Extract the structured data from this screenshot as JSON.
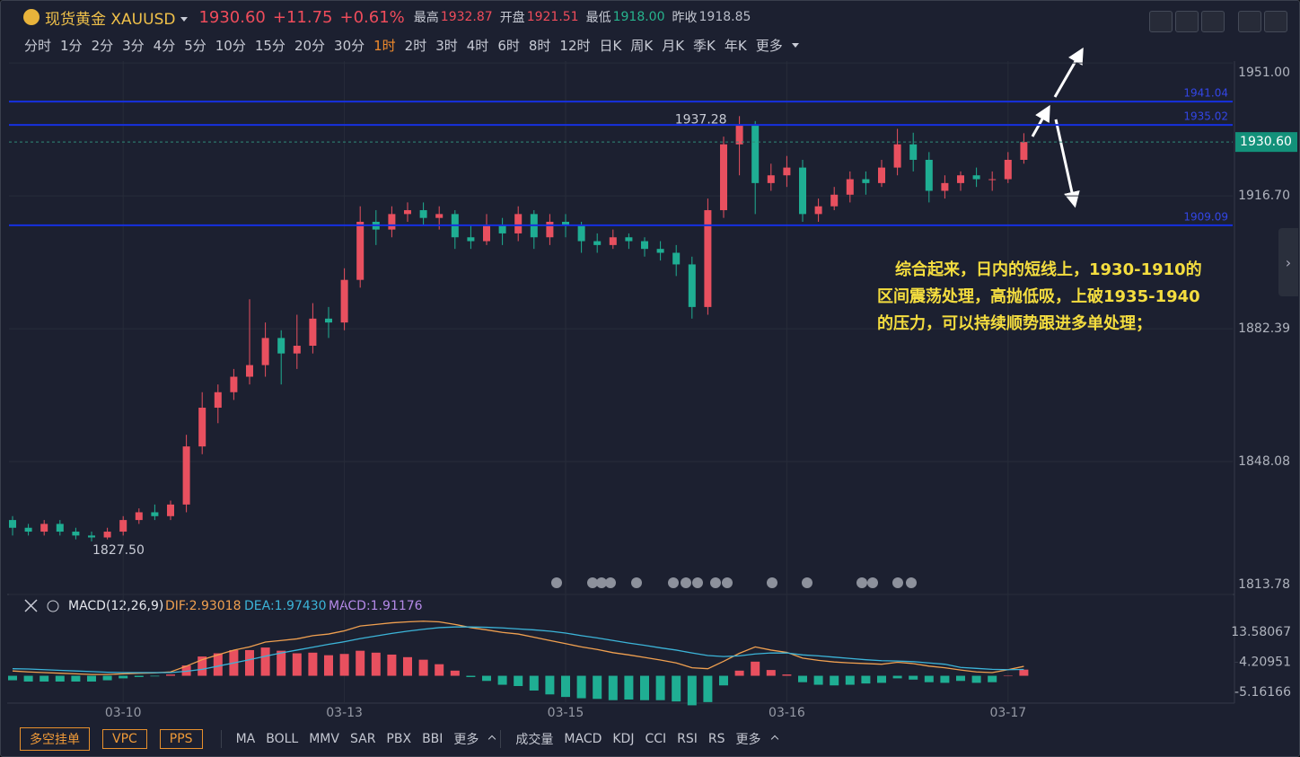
{
  "quote": {
    "name": "现货黄金 XAUUSD",
    "last": "1930.60",
    "change": "+11.75",
    "change_pct": "+0.61%",
    "stats": [
      {
        "label": "最高",
        "value": "1932.87"
      },
      {
        "label": "开盘",
        "value": "1921.51"
      },
      {
        "label": "最低",
        "value": "1918.00"
      },
      {
        "label": "昨收",
        "value": "1918.85"
      }
    ]
  },
  "timeframes": {
    "items": [
      "分时",
      "1分",
      "2分",
      "3分",
      "4分",
      "5分",
      "10分",
      "15分",
      "20分",
      "30分",
      "1时",
      "2时",
      "3时",
      "4时",
      "6时",
      "8时",
      "12时",
      "日K",
      "周K",
      "月K",
      "季K",
      "年K"
    ],
    "active": 10,
    "more": "更多"
  },
  "chart_data": {
    "type": "candlestick",
    "ylim": [
      1813.78,
      1951.5
    ],
    "yticks": [
      {
        "value": 1951,
        "label": "1951.00"
      },
      {
        "value": 1916.7,
        "label": "1916.70"
      },
      {
        "value": 1882.39,
        "label": "1882.39"
      },
      {
        "value": 1848.08,
        "label": "1848.08"
      },
      {
        "value": 1813.78,
        "label": "1813.78"
      }
    ],
    "candles": [
      [
        1833,
        1834,
        1829,
        1831
      ],
      [
        1831,
        1832,
        1829,
        1830
      ],
      [
        1830,
        1833,
        1829,
        1832
      ],
      [
        1832,
        1833,
        1829,
        1830
      ],
      [
        1830,
        1831,
        1828,
        1829
      ],
      [
        1829,
        1830,
        1827.5,
        1828.5
      ],
      [
        1828.5,
        1831,
        1828,
        1830
      ],
      [
        1830,
        1834,
        1829,
        1833
      ],
      [
        1833,
        1836,
        1832,
        1835
      ],
      [
        1835,
        1837,
        1833,
        1834
      ],
      [
        1834,
        1838,
        1833,
        1837
      ],
      [
        1837,
        1855,
        1835,
        1852
      ],
      [
        1852,
        1866,
        1850,
        1862
      ],
      [
        1862,
        1868,
        1858,
        1866
      ],
      [
        1866,
        1872,
        1864,
        1870
      ],
      [
        1870,
        1890,
        1868,
        1873
      ],
      [
        1873,
        1884,
        1870,
        1880
      ],
      [
        1880,
        1882,
        1868,
        1876
      ],
      [
        1876,
        1886,
        1872,
        1878
      ],
      [
        1878,
        1889,
        1876,
        1885
      ],
      [
        1885,
        1888,
        1880,
        1884
      ],
      [
        1884,
        1898,
        1882,
        1895
      ],
      [
        1895,
        1914,
        1893,
        1910
      ],
      [
        1910,
        1913,
        1904,
        1908
      ],
      [
        1908,
        1914,
        1906,
        1912
      ],
      [
        1912,
        1915,
        1910,
        1913
      ],
      [
        1913,
        1915,
        1909,
        1911
      ],
      [
        1911,
        1914,
        1908,
        1912
      ],
      [
        1912,
        1913,
        1903,
        1906
      ],
      [
        1906,
        1909,
        1903,
        1905
      ],
      [
        1905,
        1912,
        1904,
        1909
      ],
      [
        1909,
        1911,
        1904,
        1907
      ],
      [
        1907,
        1914,
        1905,
        1912
      ],
      [
        1912,
        1913,
        1903,
        1906
      ],
      [
        1906,
        1912,
        1904,
        1910
      ],
      [
        1910,
        1912,
        1906,
        1909
      ],
      [
        1909,
        1910,
        1902,
        1905
      ],
      [
        1905,
        1907,
        1902,
        1904
      ],
      [
        1904,
        1908,
        1903,
        1906
      ],
      [
        1906,
        1907,
        1903,
        1905
      ],
      [
        1905,
        1906,
        1901,
        1903
      ],
      [
        1903,
        1905,
        1900,
        1902
      ],
      [
        1902,
        1904,
        1896,
        1899
      ],
      [
        1899,
        1901,
        1885,
        1888
      ],
      [
        1888,
        1916,
        1886,
        1913
      ],
      [
        1913,
        1932,
        1911,
        1930
      ],
      [
        1930,
        1937.28,
        1922,
        1935
      ],
      [
        1935,
        1936,
        1912,
        1920
      ],
      [
        1920,
        1925,
        1918,
        1922
      ],
      [
        1922,
        1927,
        1919,
        1924
      ],
      [
        1924,
        1926,
        1910,
        1912
      ],
      [
        1912,
        1916,
        1910,
        1914
      ],
      [
        1914,
        1919,
        1913,
        1917
      ],
      [
        1917,
        1923,
        1915,
        1921
      ],
      [
        1921,
        1923,
        1917,
        1920
      ],
      [
        1920,
        1926,
        1919,
        1924
      ],
      [
        1924,
        1934,
        1922,
        1930
      ],
      [
        1930,
        1933,
        1923,
        1926
      ],
      [
        1926,
        1928,
        1915,
        1918
      ],
      [
        1918,
        1922,
        1916,
        1920
      ],
      [
        1920,
        1923,
        1918,
        1922
      ],
      [
        1922,
        1924,
        1919,
        1921
      ],
      [
        1921,
        1923,
        1918,
        1921
      ],
      [
        1921,
        1928,
        1920,
        1926
      ],
      [
        1926,
        1932.87,
        1925,
        1930.6
      ]
    ],
    "up_color": "#e8505f",
    "down_color": "#1fae93",
    "max_label": "1937.28",
    "min_label": "1827.50",
    "last_price_label": "1930.60",
    "levels": [
      {
        "value": 1941.04,
        "label": "1941.04"
      },
      {
        "value": 1935.02,
        "label": "1935.02"
      },
      {
        "value": 1909.09,
        "label": "1909.09"
      }
    ],
    "level_color": "#1630e0",
    "time_labels": [
      {
        "candle": 7,
        "label": "03-10"
      },
      {
        "candle": 21,
        "label": "03-13"
      },
      {
        "candle": 35,
        "label": "03-15"
      },
      {
        "candle": 49,
        "label": "03-16"
      },
      {
        "candle": 63,
        "label": "03-17"
      }
    ],
    "annotation": "综合起来，日内的短线上，1930-1910的区间震荡处理，高抛低吸，上破1935-1940的压力，可以持续顺势跟进多单处理；",
    "macd": {
      "title": "MACD(12,26,9)",
      "dif_label": "DIF:2.93018",
      "dea_label": "DEA:1.97430",
      "macd_label": "MACD:1.91176",
      "ylim": [
        -8.52,
        24.49
      ],
      "yticks": [
        13.58067,
        4.20951,
        -5.16166
      ],
      "dif": [
        1.5,
        1.2,
        1.0,
        0.8,
        0.6,
        0.4,
        0.4,
        0.6,
        0.8,
        0.9,
        1.2,
        3,
        5,
        6.5,
        8,
        9,
        10.5,
        11,
        11.5,
        12.5,
        13,
        14,
        15.5,
        16,
        16.5,
        16.8,
        17,
        16.8,
        16,
        15,
        14.3,
        13.5,
        13,
        12,
        11,
        10,
        9,
        8.2,
        7.2,
        6.5,
        5.7,
        4.9,
        4,
        2.5,
        2.2,
        4.5,
        7,
        9,
        8,
        7.3,
        5.5,
        4.8,
        4.3,
        4,
        3.8,
        3.6,
        4.2,
        3.8,
        3,
        2.5,
        1.8,
        1.2,
        1.0,
        1.9,
        2.93018
      ],
      "dea": [
        2.2,
        2.1,
        1.9,
        1.7,
        1.5,
        1.3,
        1.1,
        1.0,
        1.0,
        1.0,
        1.0,
        1.4,
        2,
        3,
        4,
        5,
        6.1,
        7.1,
        8,
        8.9,
        9.8,
        10.6,
        11.6,
        12.4,
        13.2,
        13.9,
        14.5,
        15,
        15.2,
        15.2,
        15.1,
        14.9,
        14.6,
        14.3,
        13.9,
        13.3,
        12.5,
        11.8,
        11,
        10.2,
        9.5,
        8.7,
        8,
        7.1,
        6.3,
        6,
        6.2,
        6.8,
        7.1,
        7.1,
        6.5,
        6.2,
        5.8,
        5.4,
        5,
        4.7,
        4.6,
        4.4,
        4,
        3.6,
        2.6,
        2.3,
        2.0,
        1.9,
        1.9743
      ],
      "hist": [
        -1.4,
        -1.8,
        -1.8,
        -1.8,
        -1.8,
        -1.8,
        -1.4,
        -0.8,
        -0.4,
        -0.2,
        0.4,
        3.2,
        6,
        7,
        8,
        8,
        8.8,
        7.8,
        7,
        7.2,
        6.4,
        6.8,
        7.8,
        7.2,
        6.6,
        5.8,
        5,
        3.6,
        1.6,
        -0.4,
        -1.6,
        -2.8,
        -3.2,
        -4.6,
        -5.8,
        -6.6,
        -7,
        -7.2,
        -7.6,
        -7.4,
        -7.6,
        -7.6,
        -8,
        -9.2,
        -8.2,
        -3,
        1.6,
        4.4,
        1.8,
        0.4,
        -2,
        -2.8,
        -3,
        -2.8,
        -2.4,
        -2.2,
        -0.8,
        -1.2,
        -2,
        -2.2,
        -1.6,
        -2.2,
        -2,
        0,
        1.91176
      ]
    }
  },
  "toolbar": {
    "buttons": [
      "多空挂单",
      "VPC",
      "PPS"
    ],
    "main_indicators": [
      "MA",
      "BOLL",
      "MMV",
      "SAR",
      "PBX",
      "BBI",
      "更多"
    ],
    "sub_indicators": [
      "成交量",
      "MACD",
      "KDJ",
      "CCI",
      "RSI",
      "RS",
      "更多"
    ]
  }
}
